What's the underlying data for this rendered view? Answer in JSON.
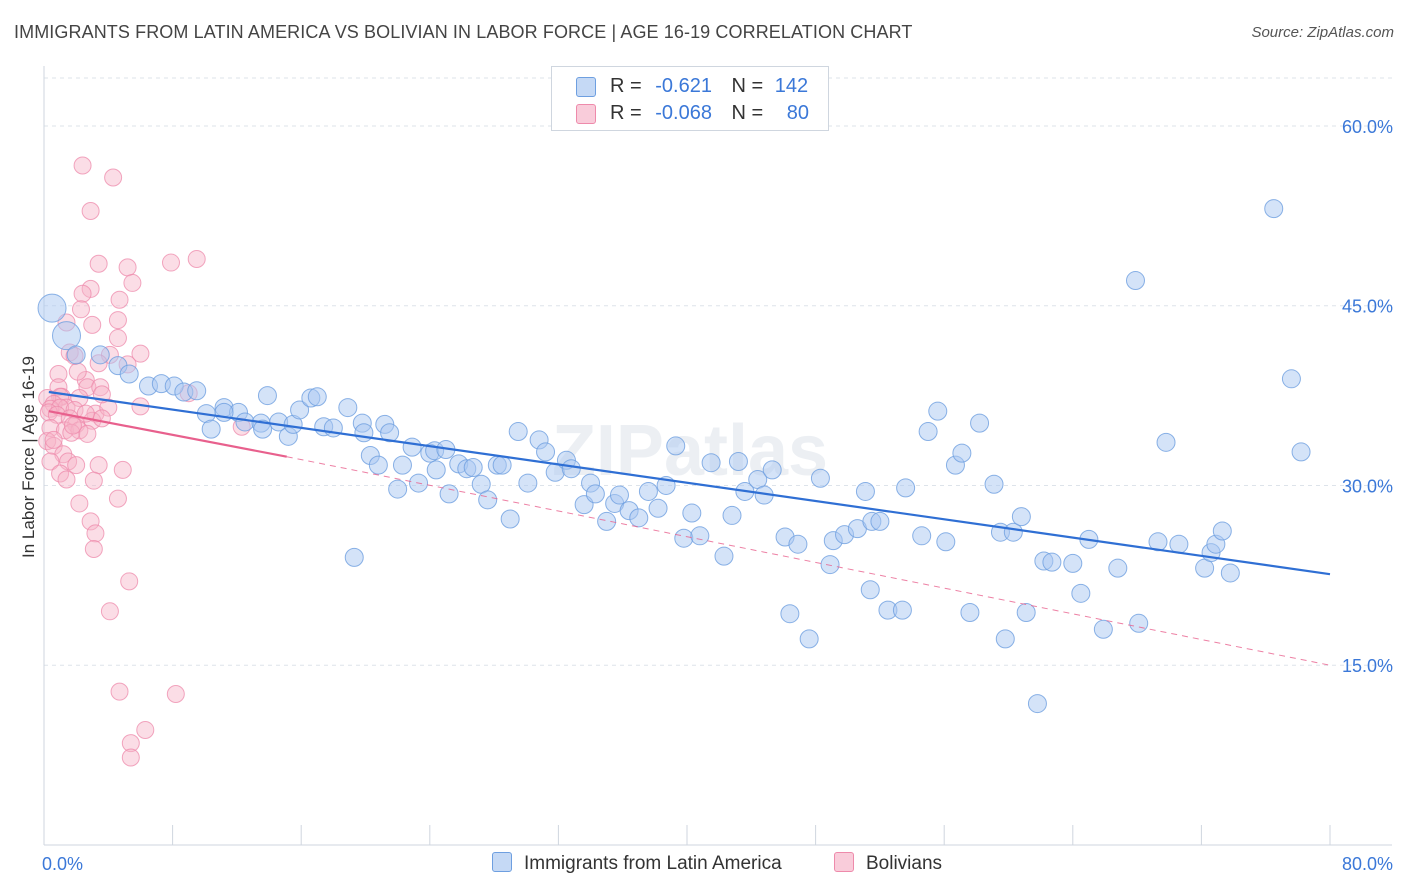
{
  "header": {
    "title": "IMMIGRANTS FROM LATIN AMERICA VS BOLIVIAN IN LABOR FORCE | AGE 16-19 CORRELATION CHART",
    "source": "Source: ZipAtlas.com"
  },
  "legend": {
    "rows": [
      {
        "r_label": "R =",
        "r_value": "-0.621",
        "n_label": "N =",
        "n_value": "142"
      },
      {
        "r_label": "R =",
        "r_value": "-0.068",
        "n_label": "N =",
        "n_value": "80"
      }
    ]
  },
  "bottom_legend": {
    "items": [
      "Immigrants from Latin America",
      "Bolivians"
    ]
  },
  "colors": {
    "blue_fill": "#a9c8f2",
    "blue_stroke": "#6e9fe0",
    "blue_line": "#2f6fd4",
    "pink_fill": "#f6b3c8",
    "pink_stroke": "#ee8aab",
    "pink_line": "#e8608d",
    "axis_text": "#3b78d8"
  },
  "chart_data": {
    "type": "scatter",
    "title": "IMMIGRANTS FROM LATIN AMERICA VS BOLIVIAN IN LABOR FORCE | AGE 16-19 CORRELATION CHART",
    "ylabel": "In Labor Force | Age 16-19",
    "xlabel": "",
    "xlim": [
      0,
      80
    ],
    "ylim": [
      0,
      64
    ],
    "x_tick_labels": [
      "0.0%",
      "80.0%"
    ],
    "y_ticks": [
      15,
      30,
      45,
      60
    ],
    "y_tick_labels": [
      "15.0%",
      "30.0%",
      "45.0%",
      "60.0%"
    ],
    "grid": true,
    "watermark": "ZIPatlas",
    "series": [
      {
        "name": "Immigrants from Latin America",
        "color": "#a9c8f2",
        "r": -0.621,
        "n": 142,
        "trend": {
          "x": [
            0.3,
            80
          ],
          "y": [
            37.8,
            22.6
          ]
        },
        "points": [
          [
            0.5,
            44.8
          ],
          [
            1.4,
            42.5
          ],
          [
            2.0,
            40.9
          ],
          [
            3.5,
            40.9
          ],
          [
            4.6,
            40.0
          ],
          [
            5.3,
            39.3
          ],
          [
            6.5,
            38.3
          ],
          [
            7.3,
            38.5
          ],
          [
            8.1,
            38.3
          ],
          [
            8.7,
            37.8
          ],
          [
            9.5,
            37.9
          ],
          [
            10.1,
            36.0
          ],
          [
            10.4,
            34.7
          ],
          [
            11.2,
            36.5
          ],
          [
            12.1,
            36.1
          ],
          [
            12.5,
            35.3
          ],
          [
            13.5,
            35.2
          ],
          [
            13.6,
            34.7
          ],
          [
            13.9,
            37.5
          ],
          [
            14.6,
            35.3
          ],
          [
            15.2,
            34.1
          ],
          [
            15.5,
            35.1
          ],
          [
            15.9,
            36.3
          ],
          [
            16.6,
            37.3
          ],
          [
            17.0,
            37.4
          ],
          [
            17.4,
            34.9
          ],
          [
            18.0,
            34.8
          ],
          [
            18.9,
            36.5
          ],
          [
            19.3,
            24.0
          ],
          [
            19.8,
            35.2
          ],
          [
            19.9,
            34.4
          ],
          [
            20.3,
            32.5
          ],
          [
            20.8,
            31.7
          ],
          [
            21.2,
            35.1
          ],
          [
            21.5,
            34.4
          ],
          [
            22.0,
            29.7
          ],
          [
            22.3,
            31.7
          ],
          [
            22.9,
            33.2
          ],
          [
            23.3,
            30.2
          ],
          [
            24.0,
            32.7
          ],
          [
            24.3,
            32.9
          ],
          [
            24.4,
            31.3
          ],
          [
            25.0,
            33.0
          ],
          [
            25.2,
            29.3
          ],
          [
            25.8,
            31.8
          ],
          [
            26.3,
            31.4
          ],
          [
            26.7,
            31.5
          ],
          [
            27.2,
            30.1
          ],
          [
            27.6,
            28.8
          ],
          [
            28.2,
            31.7
          ],
          [
            28.5,
            31.7
          ],
          [
            29.0,
            27.2
          ],
          [
            29.5,
            34.5
          ],
          [
            30.1,
            30.2
          ],
          [
            30.8,
            33.8
          ],
          [
            31.2,
            32.8
          ],
          [
            31.8,
            31.1
          ],
          [
            32.5,
            32.1
          ],
          [
            32.8,
            31.4
          ],
          [
            33.6,
            28.4
          ],
          [
            34.0,
            30.2
          ],
          [
            34.3,
            29.3
          ],
          [
            35.0,
            27.0
          ],
          [
            35.5,
            28.5
          ],
          [
            35.8,
            29.2
          ],
          [
            36.4,
            27.9
          ],
          [
            37.0,
            27.3
          ],
          [
            37.6,
            29.5
          ],
          [
            38.2,
            28.1
          ],
          [
            38.7,
            30.0
          ],
          [
            39.3,
            33.3
          ],
          [
            39.8,
            25.6
          ],
          [
            40.3,
            27.7
          ],
          [
            40.8,
            25.8
          ],
          [
            41.5,
            31.9
          ],
          [
            42.3,
            24.1
          ],
          [
            42.8,
            27.5
          ],
          [
            43.2,
            32.0
          ],
          [
            43.6,
            29.5
          ],
          [
            44.4,
            30.5
          ],
          [
            44.8,
            29.2
          ],
          [
            45.3,
            31.3
          ],
          [
            46.1,
            25.7
          ],
          [
            46.4,
            19.3
          ],
          [
            46.9,
            25.1
          ],
          [
            47.6,
            17.2
          ],
          [
            48.3,
            30.6
          ],
          [
            48.9,
            23.4
          ],
          [
            49.1,
            25.4
          ],
          [
            49.8,
            25.9
          ],
          [
            50.6,
            26.4
          ],
          [
            51.1,
            29.5
          ],
          [
            51.4,
            21.3
          ],
          [
            51.5,
            27.0
          ],
          [
            52.0,
            27.0
          ],
          [
            52.5,
            19.6
          ],
          [
            53.4,
            19.6
          ],
          [
            53.6,
            29.8
          ],
          [
            54.6,
            25.8
          ],
          [
            55.0,
            34.5
          ],
          [
            55.6,
            36.2
          ],
          [
            56.1,
            25.3
          ],
          [
            56.7,
            31.7
          ],
          [
            57.1,
            32.7
          ],
          [
            57.6,
            19.4
          ],
          [
            58.2,
            35.2
          ],
          [
            59.1,
            30.1
          ],
          [
            59.5,
            26.1
          ],
          [
            59.8,
            17.2
          ],
          [
            60.3,
            26.1
          ],
          [
            60.8,
            27.4
          ],
          [
            61.1,
            19.4
          ],
          [
            61.8,
            11.8
          ],
          [
            62.2,
            23.7
          ],
          [
            62.7,
            23.6
          ],
          [
            64.0,
            23.5
          ],
          [
            64.5,
            21.0
          ],
          [
            65.0,
            25.5
          ],
          [
            65.9,
            18.0
          ],
          [
            66.8,
            23.1
          ],
          [
            68.1,
            18.5
          ],
          [
            69.3,
            25.3
          ],
          [
            69.8,
            33.6
          ],
          [
            70.6,
            25.1
          ],
          [
            72.2,
            23.1
          ],
          [
            72.6,
            24.4
          ],
          [
            72.9,
            25.1
          ],
          [
            73.3,
            26.2
          ],
          [
            73.8,
            22.7
          ],
          [
            67.9,
            47.1
          ],
          [
            76.5,
            53.1
          ],
          [
            77.6,
            38.9
          ],
          [
            78.2,
            32.8
          ],
          [
            11.2,
            36.1
          ]
        ],
        "large_points": [
          [
            0.5,
            44.8
          ],
          [
            1.4,
            42.5
          ]
        ]
      },
      {
        "name": "Bolivians",
        "color": "#f6b3c8",
        "r": -0.068,
        "n": 80,
        "trend_solid": {
          "x": [
            0.3,
            15.1
          ],
          "y": [
            36.2,
            32.4
          ]
        },
        "trend_dashed": {
          "x": [
            15.1,
            80
          ],
          "y": [
            32.4,
            15.0
          ]
        },
        "points": [
          [
            2.4,
            56.7
          ],
          [
            4.3,
            55.7
          ],
          [
            2.9,
            52.9
          ],
          [
            7.9,
            48.6
          ],
          [
            9.5,
            48.9
          ],
          [
            3.4,
            48.5
          ],
          [
            5.2,
            48.2
          ],
          [
            5.5,
            46.9
          ],
          [
            2.9,
            46.4
          ],
          [
            4.7,
            45.5
          ],
          [
            2.4,
            46.0
          ],
          [
            2.3,
            44.7
          ],
          [
            4.6,
            43.8
          ],
          [
            3.0,
            43.4
          ],
          [
            1.4,
            43.6
          ],
          [
            4.6,
            42.3
          ],
          [
            6.0,
            41.0
          ],
          [
            1.6,
            41.1
          ],
          [
            4.1,
            40.9
          ],
          [
            3.4,
            40.2
          ],
          [
            0.9,
            39.3
          ],
          [
            2.6,
            38.8
          ],
          [
            0.9,
            38.2
          ],
          [
            2.7,
            38.2
          ],
          [
            1.1,
            37.4
          ],
          [
            3.5,
            38.2
          ],
          [
            1.0,
            37.4
          ],
          [
            0.2,
            37.3
          ],
          [
            0.6,
            36.8
          ],
          [
            1.4,
            36.5
          ],
          [
            0.4,
            36.4
          ],
          [
            1.0,
            36.5
          ],
          [
            2.2,
            37.3
          ],
          [
            1.9,
            36.3
          ],
          [
            3.2,
            36.0
          ],
          [
            4.0,
            36.5
          ],
          [
            6.0,
            36.6
          ],
          [
            9.0,
            37.7
          ],
          [
            0.3,
            36.1
          ],
          [
            0.8,
            35.9
          ],
          [
            1.6,
            35.6
          ],
          [
            3.0,
            35.4
          ],
          [
            3.6,
            35.6
          ],
          [
            2.0,
            35.1
          ],
          [
            0.4,
            34.8
          ],
          [
            1.3,
            34.6
          ],
          [
            2.2,
            34.6
          ],
          [
            1.7,
            34.4
          ],
          [
            2.7,
            34.3
          ],
          [
            12.3,
            34.9
          ],
          [
            0.2,
            33.7
          ],
          [
            0.6,
            33.3
          ],
          [
            1.2,
            32.6
          ],
          [
            0.4,
            32.0
          ],
          [
            1.5,
            32.0
          ],
          [
            2.0,
            31.7
          ],
          [
            3.4,
            31.7
          ],
          [
            1.0,
            31.0
          ],
          [
            4.9,
            31.3
          ],
          [
            1.4,
            30.5
          ],
          [
            3.1,
            30.4
          ],
          [
            4.6,
            28.9
          ],
          [
            2.2,
            28.5
          ],
          [
            2.9,
            27.0
          ],
          [
            3.2,
            26.0
          ],
          [
            3.1,
            24.7
          ],
          [
            5.3,
            22.0
          ],
          [
            4.1,
            19.5
          ],
          [
            4.7,
            12.8
          ],
          [
            8.2,
            12.6
          ],
          [
            6.3,
            9.6
          ],
          [
            5.4,
            8.5
          ],
          [
            5.4,
            7.3
          ],
          [
            0.6,
            33.8
          ],
          [
            1.8,
            35.0
          ],
          [
            2.6,
            36.0
          ],
          [
            5.2,
            40.1
          ],
          [
            3.6,
            37.6
          ],
          [
            2.1,
            39.5
          ],
          [
            1.9,
            40.8
          ]
        ]
      }
    ]
  }
}
